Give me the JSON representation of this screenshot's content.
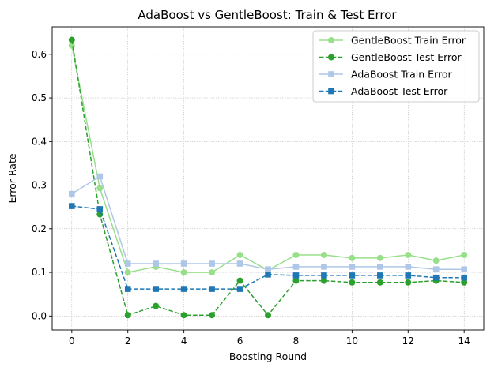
{
  "chart_data": {
    "type": "line",
    "title": "AdaBoost vs GentleBoost: Train & Test Error",
    "xlabel": "Boosting Round",
    "ylabel": "Error Rate",
    "xlim": [
      -0.7,
      14.7
    ],
    "ylim": [
      -0.032,
      0.663
    ],
    "xticks": [
      0,
      2,
      4,
      6,
      8,
      10,
      12,
      14
    ],
    "yticks": [
      0.0,
      0.1,
      0.2,
      0.3,
      0.4,
      0.5,
      0.6
    ],
    "grid": true,
    "legend_position": "top-right",
    "x": [
      0,
      1,
      2,
      3,
      4,
      5,
      6,
      7,
      8,
      9,
      10,
      11,
      12,
      13,
      14
    ],
    "series": [
      {
        "name": "GentleBoost Train Error",
        "color": "#98df8a",
        "dash": "solid",
        "marker": "circle",
        "values": [
          0.62,
          0.293,
          0.1,
          0.113,
          0.1,
          0.1,
          0.14,
          0.105,
          0.14,
          0.14,
          0.133,
          0.133,
          0.14,
          0.127,
          0.14
        ]
      },
      {
        "name": "GentleBoost Test Error",
        "color": "#2ca02c",
        "dash": "dashed",
        "marker": "circle",
        "values": [
          0.633,
          0.233,
          0.002,
          0.023,
          0.002,
          0.002,
          0.081,
          0.002,
          0.081,
          0.081,
          0.077,
          0.077,
          0.077,
          0.081,
          0.077
        ]
      },
      {
        "name": "AdaBoost Train Error",
        "color": "#aec7e8",
        "dash": "solid",
        "marker": "square",
        "values": [
          0.28,
          0.32,
          0.12,
          0.12,
          0.12,
          0.12,
          0.12,
          0.107,
          0.113,
          0.113,
          0.113,
          0.113,
          0.113,
          0.107,
          0.107
        ]
      },
      {
        "name": "AdaBoost Test Error",
        "color": "#1f77b4",
        "dash": "dashed",
        "marker": "square",
        "values": [
          0.252,
          0.245,
          0.062,
          0.062,
          0.062,
          0.062,
          0.062,
          0.095,
          0.093,
          0.093,
          0.093,
          0.093,
          0.093,
          0.088,
          0.088
        ]
      }
    ]
  }
}
